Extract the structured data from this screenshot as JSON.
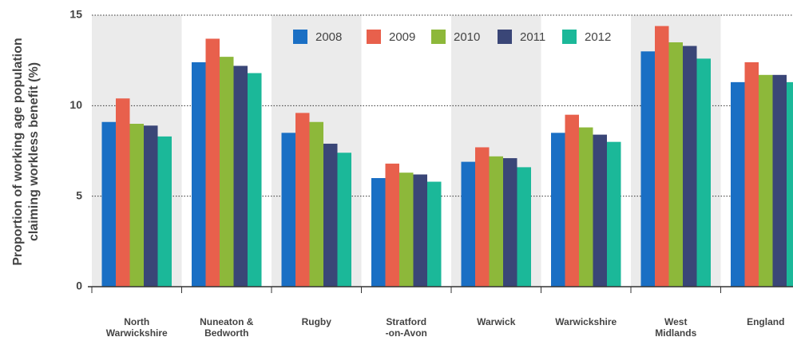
{
  "chart_data": {
    "type": "bar",
    "y_label": "Proportion of working age population\nclaiming workless benefit (%)",
    "categories": [
      "North\nWarwickshire",
      "Nuneaton &\nBedworth",
      "Rugby",
      "Stratford\n-on-Avon",
      "Warwick",
      "Warwickshire",
      "West\nMidlands",
      "England"
    ],
    "series": [
      {
        "name": "2008",
        "color": "#1a6fc4",
        "values": [
          9.1,
          12.4,
          8.5,
          6.0,
          6.9,
          8.5,
          13.0,
          11.3
        ]
      },
      {
        "name": "2009",
        "color": "#e8604c",
        "values": [
          10.4,
          13.7,
          9.6,
          6.8,
          7.7,
          9.5,
          14.4,
          12.4
        ]
      },
      {
        "name": "2010",
        "color": "#8db83a",
        "values": [
          9.0,
          12.7,
          9.1,
          6.3,
          7.2,
          8.8,
          13.5,
          11.7
        ]
      },
      {
        "name": "2011",
        "color": "#3a4677",
        "values": [
          8.9,
          12.2,
          7.9,
          6.2,
          7.1,
          8.4,
          13.3,
          11.7
        ]
      },
      {
        "name": "2012",
        "color": "#1bb899",
        "values": [
          8.3,
          11.8,
          7.4,
          5.8,
          6.6,
          8.0,
          12.6,
          11.3
        ]
      }
    ],
    "ylim": [
      0,
      15
    ],
    "yticks": [
      0,
      5,
      10,
      15
    ],
    "grid": true,
    "legend": "top"
  }
}
